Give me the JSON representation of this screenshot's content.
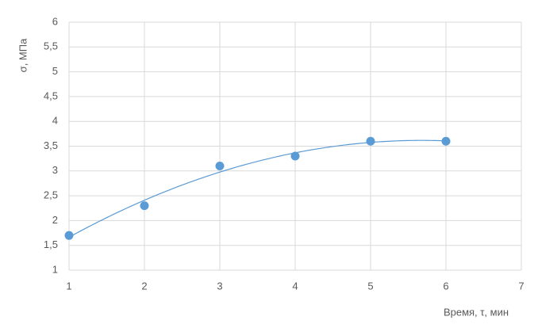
{
  "chart_data": {
    "type": "scatter",
    "x_label": "Время, τ, мин",
    "y_label": "σ, МПа",
    "series": [
      {
        "color": "#5b9bd5",
        "x": [
          1,
          2,
          3,
          4,
          5,
          6
        ],
        "values": [
          1.7,
          2.3,
          3.1,
          3.3,
          3.6,
          3.6
        ]
      }
    ],
    "trendline": "polynomial",
    "trendline_order": 2,
    "xlim": [
      1,
      7
    ],
    "xticks": [
      1,
      2,
      3,
      4,
      5,
      6,
      7
    ],
    "ylim": [
      1,
      6
    ],
    "yticks": [
      1,
      {
        "value": 1.5,
        "label": "1,5"
      },
      2,
      {
        "value": 2.5,
        "label": "2,5"
      },
      3,
      {
        "value": 3.5,
        "label": "3,5"
      },
      4,
      {
        "value": 4.5,
        "label": "4,5"
      },
      5,
      {
        "value": 5.5,
        "label": "5,5"
      },
      6
    ],
    "grid": true
  }
}
